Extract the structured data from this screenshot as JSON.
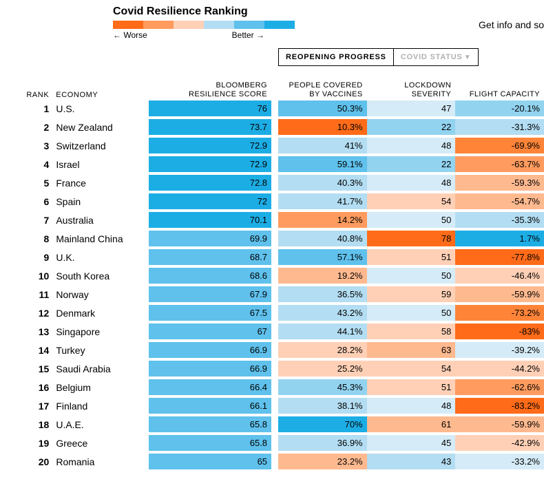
{
  "title": "Covid Resilience Ranking",
  "legend": {
    "worse": "← Worse",
    "better": "Better →",
    "colors": [
      "#ff6b18",
      "#ff9b5e",
      "#ffd0b6",
      "#b3ddf2",
      "#5fc1ec",
      "#1dade5"
    ]
  },
  "info_link": "Get info and so",
  "tabs": {
    "active": "Reopening Progress",
    "inactive": "Covid Status"
  },
  "headers": {
    "rank": "RANK",
    "economy": "ECONOMY",
    "score": "BLOOMBERG\nRESILIENCE SCORE",
    "vaccines": "PEOPLE COVERED\nBY VACCINES",
    "lockdown": "LOCKDOWN SEVERITY",
    "flight": "FLIGHT CAPACITY"
  },
  "palette": {
    "blue5": "#1dade5",
    "blue4": "#5fc1ec",
    "blue3": "#92d3f0",
    "blue2": "#b3ddf2",
    "blue1": "#d5ecf8",
    "orange1": "#ffd0b6",
    "orange2": "#ffb98f",
    "orange3": "#ff9b5e",
    "orange4": "#ff8438",
    "orange5": "#ff6b18"
  },
  "rows": [
    {
      "rank": "1",
      "economy": "U.S.",
      "score": "76",
      "score_c": "blue5",
      "vacc": "50.3%",
      "vacc_c": "blue4",
      "lock": "47",
      "lock_c": "blue1",
      "flight": "-20.1%",
      "flight_c": "blue3"
    },
    {
      "rank": "2",
      "economy": "New Zealand",
      "score": "73.7",
      "score_c": "blue5",
      "vacc": "10.3%",
      "vacc_c": "orange5",
      "lock": "22",
      "lock_c": "blue3",
      "flight": "-31.3%",
      "flight_c": "blue2"
    },
    {
      "rank": "3",
      "economy": "Switzerland",
      "score": "72.9",
      "score_c": "blue5",
      "vacc": "41%",
      "vacc_c": "blue2",
      "lock": "48",
      "lock_c": "blue1",
      "flight": "-69.9%",
      "flight_c": "orange4"
    },
    {
      "rank": "4",
      "economy": "Israel",
      "score": "72.9",
      "score_c": "blue5",
      "vacc": "59.1%",
      "vacc_c": "blue4",
      "lock": "22",
      "lock_c": "blue3",
      "flight": "-63.7%",
      "flight_c": "orange3"
    },
    {
      "rank": "5",
      "economy": "France",
      "score": "72.8",
      "score_c": "blue5",
      "vacc": "40.3%",
      "vacc_c": "blue2",
      "lock": "48",
      "lock_c": "blue1",
      "flight": "-59.3%",
      "flight_c": "orange2"
    },
    {
      "rank": "6",
      "economy": "Spain",
      "score": "72",
      "score_c": "blue5",
      "vacc": "41.7%",
      "vacc_c": "blue2",
      "lock": "54",
      "lock_c": "orange1",
      "flight": "-54.7%",
      "flight_c": "orange2"
    },
    {
      "rank": "7",
      "economy": "Australia",
      "score": "70.1",
      "score_c": "blue5",
      "vacc": "14.2%",
      "vacc_c": "orange3",
      "lock": "50",
      "lock_c": "blue1",
      "flight": "-35.3%",
      "flight_c": "blue2"
    },
    {
      "rank": "8",
      "economy": "Mainland China",
      "score": "69.9",
      "score_c": "blue4",
      "vacc": "40.8%",
      "vacc_c": "blue2",
      "lock": "78",
      "lock_c": "orange5",
      "flight": "1.7%",
      "flight_c": "blue5"
    },
    {
      "rank": "9",
      "economy": "U.K.",
      "score": "68.7",
      "score_c": "blue4",
      "vacc": "57.1%",
      "vacc_c": "blue4",
      "lock": "51",
      "lock_c": "orange1",
      "flight": "-77.8%",
      "flight_c": "orange5"
    },
    {
      "rank": "10",
      "economy": "South Korea",
      "score": "68.6",
      "score_c": "blue4",
      "vacc": "19.2%",
      "vacc_c": "orange2",
      "lock": "50",
      "lock_c": "blue1",
      "flight": "-46.4%",
      "flight_c": "orange1"
    },
    {
      "rank": "11",
      "economy": "Norway",
      "score": "67.9",
      "score_c": "blue4",
      "vacc": "36.5%",
      "vacc_c": "blue2",
      "lock": "59",
      "lock_c": "orange1",
      "flight": "-59.9%",
      "flight_c": "orange2"
    },
    {
      "rank": "12",
      "economy": "Denmark",
      "score": "67.5",
      "score_c": "blue4",
      "vacc": "43.2%",
      "vacc_c": "blue2",
      "lock": "50",
      "lock_c": "blue1",
      "flight": "-73.2%",
      "flight_c": "orange4"
    },
    {
      "rank": "13",
      "economy": "Singapore",
      "score": "67",
      "score_c": "blue4",
      "vacc": "44.1%",
      "vacc_c": "blue2",
      "lock": "58",
      "lock_c": "orange1",
      "flight": "-83%",
      "flight_c": "orange5"
    },
    {
      "rank": "14",
      "economy": "Turkey",
      "score": "66.9",
      "score_c": "blue4",
      "vacc": "28.2%",
      "vacc_c": "orange1",
      "lock": "63",
      "lock_c": "orange2",
      "flight": "-39.2%",
      "flight_c": "blue1"
    },
    {
      "rank": "15",
      "economy": "Saudi Arabia",
      "score": "66.9",
      "score_c": "blue4",
      "vacc": "25.2%",
      "vacc_c": "orange1",
      "lock": "54",
      "lock_c": "orange1",
      "flight": "-44.2%",
      "flight_c": "orange1"
    },
    {
      "rank": "16",
      "economy": "Belgium",
      "score": "66.4",
      "score_c": "blue4",
      "vacc": "45.3%",
      "vacc_c": "blue3",
      "lock": "51",
      "lock_c": "orange1",
      "flight": "-62.6%",
      "flight_c": "orange3"
    },
    {
      "rank": "17",
      "economy": "Finland",
      "score": "66.1",
      "score_c": "blue4",
      "vacc": "38.1%",
      "vacc_c": "blue2",
      "lock": "48",
      "lock_c": "blue1",
      "flight": "-83.2%",
      "flight_c": "orange5"
    },
    {
      "rank": "18",
      "economy": "U.A.E.",
      "score": "65.8",
      "score_c": "blue4",
      "vacc": "70%",
      "vacc_c": "blue5",
      "lock": "61",
      "lock_c": "orange2",
      "flight": "-59.9%",
      "flight_c": "orange2"
    },
    {
      "rank": "19",
      "economy": "Greece",
      "score": "65.8",
      "score_c": "blue4",
      "vacc": "36.9%",
      "vacc_c": "blue2",
      "lock": "45",
      "lock_c": "blue1",
      "flight": "-42.9%",
      "flight_c": "orange1"
    },
    {
      "rank": "20",
      "economy": "Romania",
      "score": "65",
      "score_c": "blue4",
      "vacc": "23.2%",
      "vacc_c": "orange2",
      "lock": "43",
      "lock_c": "blue2",
      "flight": "-33.2%",
      "flight_c": "blue1"
    }
  ]
}
